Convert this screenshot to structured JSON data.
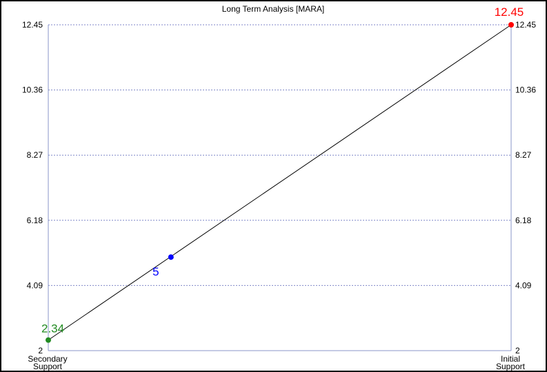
{
  "chart_data": {
    "type": "line",
    "title": "Long Term Analysis [MARA]",
    "ylim": [
      2,
      12.45
    ],
    "y_ticks": [
      "2",
      "4.09",
      "6.18",
      "8.27",
      "10.36",
      "12.45"
    ],
    "x_categories": [
      {
        "line1": "Secondary",
        "line2": "Support"
      },
      {
        "line1": "Initial",
        "line2": "Support"
      }
    ],
    "grid": true,
    "series": [
      {
        "points": [
          {
            "x": 0,
            "y": 2.34,
            "label": "2.34",
            "color": "#228b22"
          },
          {
            "x": 0.265,
            "y": 5.0,
            "label": "5",
            "color": "#0000ff"
          },
          {
            "x": 1,
            "y": 12.45,
            "label": "12.45",
            "color": "#ff0000"
          }
        ],
        "line_color": "#000000"
      }
    ],
    "colors": {
      "grid": "#7f86c8",
      "axis": "#8a96c8"
    }
  }
}
